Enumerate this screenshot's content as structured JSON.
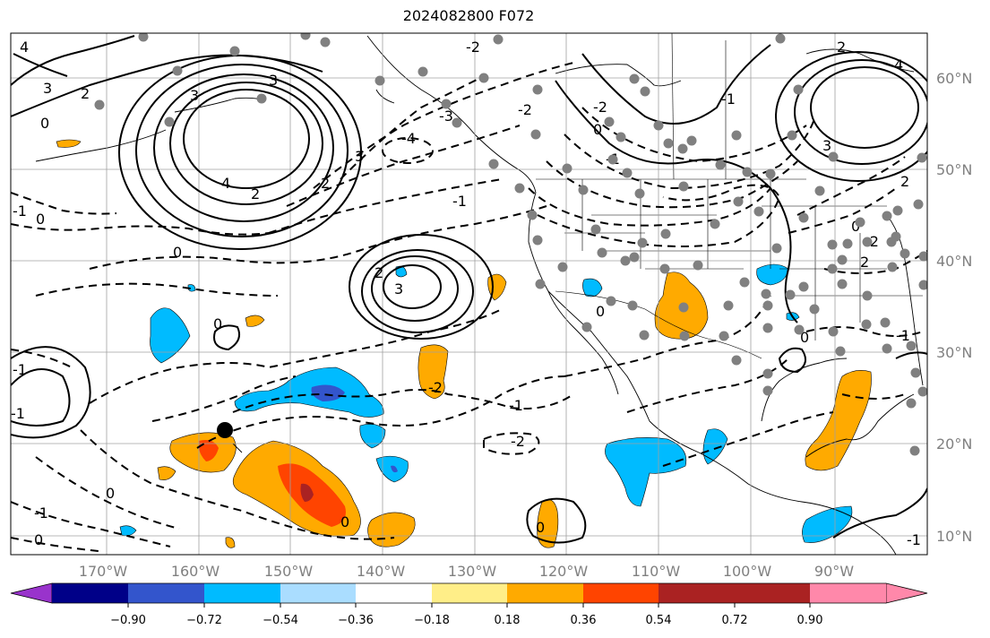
{
  "title": "2024082800 F072",
  "longitude_labels": [
    "170°W",
    "160°W",
    "150°W",
    "140°W",
    "130°W",
    "120°W",
    "110°W",
    "100°W",
    "90°W"
  ],
  "latitude_labels": [
    "60°N",
    "50°N",
    "40°N",
    "30°N",
    "20°N",
    "10°N"
  ],
  "colorbar": {
    "ticks": [
      "−0.90",
      "−0.72",
      "−0.54",
      "−0.36",
      "−0.18",
      "0.18",
      "0.36",
      "0.54",
      "0.72",
      "0.90"
    ],
    "colors": [
      "#9933cc",
      "#000088",
      "#3355cc",
      "#00bbff",
      "#aaddff",
      "#ffffff",
      "#ffee88",
      "#ffaa00",
      "#ff4400",
      "#aa2222",
      "#ff88aa"
    ]
  },
  "contour_labels": [
    "4",
    "3",
    "2",
    "0",
    "0",
    "2",
    "3",
    "4",
    "3",
    "2",
    "-1",
    "-1",
    "-2",
    "-3",
    "-4",
    "0",
    "-1",
    "2",
    "3",
    "0",
    "-1",
    "-2",
    "-1",
    "-2",
    "0",
    "-1",
    "0",
    "0",
    "2",
    "3",
    "4",
    "0",
    "-2",
    "-1",
    "0",
    "2",
    "3",
    "-2",
    "0",
    "2",
    "-2",
    "-1",
    "0",
    "-1",
    "0",
    "-1"
  ],
  "legend": {
    "shading": "anomaly",
    "contours": "solid positive / dashed negative"
  }
}
